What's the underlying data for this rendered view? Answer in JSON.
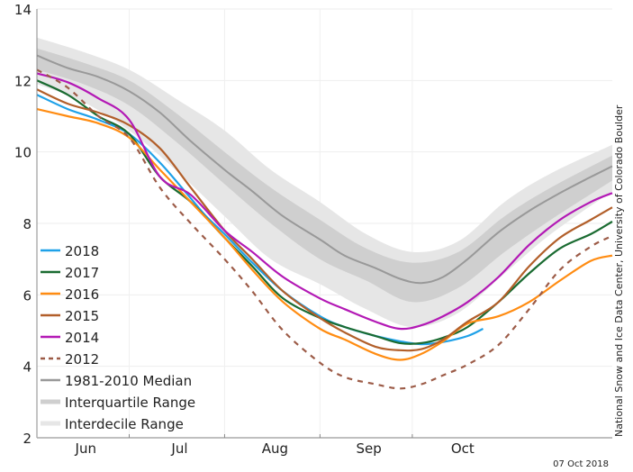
{
  "chart_data": {
    "type": "line",
    "title": "",
    "xlabel": "",
    "ylabel": "",
    "x_unit": "days since Jun 1",
    "xlim": [
      0,
      187
    ],
    "ylim": [
      2,
      14
    ],
    "yticks": [
      2,
      4,
      6,
      8,
      10,
      12,
      14
    ],
    "xticks_boundaries": [
      30,
      61,
      92,
      122
    ],
    "month_labels": [
      {
        "label": "Jun",
        "center": 15
      },
      {
        "label": "Jul",
        "center": 45.5
      },
      {
        "label": "Aug",
        "center": 76.5
      },
      {
        "label": "Sep",
        "center": 107
      },
      {
        "label": "Oct",
        "center": 137.5
      }
    ],
    "grid": true,
    "legend_position": "bottom-left",
    "credit": "National Snow and Ice Data Center, University of Colorado Boulder",
    "date_stamp": "07 Oct 2018",
    "bands": [
      {
        "name": "Interdecile Range",
        "color": "#e6e6e6",
        "x": [
          0,
          15,
          30,
          45,
          61,
          76,
          92,
          107,
          122,
          137,
          152,
          167,
          187
        ],
        "lower": [
          11.9,
          11.4,
          10.6,
          9.5,
          8.2,
          7.0,
          6.3,
          5.6,
          5.1,
          5.5,
          6.6,
          7.7,
          8.9
        ],
        "upper": [
          13.2,
          12.8,
          12.3,
          11.5,
          10.6,
          9.5,
          8.6,
          7.7,
          7.2,
          7.5,
          8.6,
          9.4,
          10.2
        ]
      },
      {
        "name": "Interquartile Range",
        "color": "#cfcfcf",
        "x": [
          0,
          15,
          30,
          45,
          61,
          76,
          92,
          107,
          122,
          137,
          152,
          167,
          187
        ],
        "lower": [
          12.3,
          11.9,
          11.3,
          10.3,
          9.1,
          8.0,
          7.0,
          6.4,
          5.8,
          6.2,
          7.2,
          8.1,
          9.2
        ],
        "upper": [
          12.9,
          12.5,
          12.0,
          11.1,
          10.0,
          9.0,
          8.1,
          7.3,
          6.9,
          7.2,
          8.2,
          9.0,
          9.9
        ]
      }
    ],
    "series": [
      {
        "name": "1981-2010 Median",
        "color": "#999999",
        "dash": false,
        "x": [
          0,
          10,
          20,
          30,
          40,
          50,
          61,
          70,
          80,
          92,
          100,
          110,
          118,
          125,
          132,
          140,
          150,
          160,
          170,
          180,
          187
        ],
        "values": [
          12.7,
          12.35,
          12.1,
          11.7,
          11.1,
          10.3,
          9.5,
          8.9,
          8.2,
          7.55,
          7.1,
          6.75,
          6.45,
          6.33,
          6.5,
          7.0,
          7.75,
          8.35,
          8.85,
          9.3,
          9.6
        ]
      },
      {
        "name": "2018",
        "color": "#1fa1e8",
        "dash": false,
        "x": [
          0,
          10,
          20,
          30,
          40,
          50,
          55,
          61,
          70,
          80,
          92,
          100,
          110,
          118,
          125,
          132,
          140,
          145
        ],
        "values": [
          11.6,
          11.2,
          10.9,
          10.5,
          9.7,
          8.7,
          8.2,
          7.7,
          6.9,
          6.1,
          5.4,
          5.1,
          4.85,
          4.7,
          4.62,
          4.68,
          4.85,
          5.05
        ]
      },
      {
        "name": "2017",
        "color": "#1a6b31",
        "dash": false,
        "x": [
          0,
          10,
          20,
          30,
          40,
          50,
          61,
          70,
          80,
          92,
          100,
          110,
          118,
          125,
          132,
          140,
          150,
          160,
          170,
          180,
          187
        ],
        "values": [
          12.0,
          11.6,
          11.0,
          10.5,
          9.3,
          8.6,
          7.6,
          6.8,
          5.9,
          5.35,
          5.1,
          4.85,
          4.65,
          4.65,
          4.8,
          5.1,
          5.8,
          6.6,
          7.3,
          7.7,
          8.05
        ]
      },
      {
        "name": "2016",
        "color": "#ff8c12",
        "dash": false,
        "x": [
          0,
          10,
          20,
          30,
          40,
          50,
          61,
          70,
          80,
          92,
          100,
          110,
          118,
          125,
          132,
          140,
          150,
          160,
          170,
          180,
          187
        ],
        "values": [
          11.2,
          11.0,
          10.8,
          10.4,
          9.5,
          8.6,
          7.6,
          6.7,
          5.8,
          5.05,
          4.75,
          4.35,
          4.18,
          4.35,
          4.7,
          5.2,
          5.4,
          5.8,
          6.4,
          6.95,
          7.1
        ]
      },
      {
        "name": "2015",
        "color": "#b25f2a",
        "dash": false,
        "x": [
          0,
          10,
          20,
          30,
          40,
          50,
          61,
          70,
          80,
          92,
          100,
          110,
          118,
          125,
          132,
          140,
          150,
          160,
          170,
          180,
          187
        ],
        "values": [
          11.75,
          11.35,
          11.1,
          10.75,
          10.1,
          9.0,
          7.8,
          7.0,
          6.1,
          5.35,
          4.95,
          4.55,
          4.45,
          4.48,
          4.75,
          5.25,
          5.8,
          6.8,
          7.6,
          8.1,
          8.45
        ]
      },
      {
        "name": "2014",
        "color": "#b319b5",
        "dash": false,
        "x": [
          0,
          10,
          20,
          30,
          40,
          50,
          61,
          70,
          80,
          92,
          100,
          110,
          118,
          125,
          132,
          140,
          150,
          160,
          170,
          180,
          187
        ],
        "values": [
          12.2,
          11.95,
          11.5,
          10.9,
          9.3,
          8.8,
          7.8,
          7.2,
          6.5,
          5.9,
          5.6,
          5.25,
          5.05,
          5.15,
          5.4,
          5.8,
          6.5,
          7.4,
          8.1,
          8.6,
          8.85
        ]
      },
      {
        "name": "2012",
        "color": "#9c5b47",
        "dash": true,
        "x": [
          0,
          10,
          20,
          30,
          40,
          50,
          61,
          70,
          80,
          92,
          100,
          110,
          118,
          125,
          132,
          140,
          150,
          160,
          170,
          180,
          187
        ],
        "values": [
          12.3,
          11.8,
          11.0,
          10.4,
          9.0,
          8.0,
          7.0,
          6.1,
          5.0,
          4.1,
          3.7,
          3.5,
          3.38,
          3.5,
          3.75,
          4.05,
          4.6,
          5.6,
          6.7,
          7.35,
          7.65
        ]
      }
    ],
    "legend": [
      {
        "label": "2018",
        "color": "#1fa1e8",
        "style": "solid"
      },
      {
        "label": "2017",
        "color": "#1a6b31",
        "style": "solid"
      },
      {
        "label": "2016",
        "color": "#ff8c12",
        "style": "solid"
      },
      {
        "label": "2015",
        "color": "#b25f2a",
        "style": "solid"
      },
      {
        "label": "2014",
        "color": "#b319b5",
        "style": "solid"
      },
      {
        "label": "2012",
        "color": "#9c5b47",
        "style": "dashed"
      },
      {
        "label": "1981-2010 Median",
        "color": "#999999",
        "style": "solid"
      },
      {
        "label": "Interquartile Range",
        "color": "#cfcfcf",
        "style": "band"
      },
      {
        "label": "Interdecile Range",
        "color": "#e6e6e6",
        "style": "band"
      }
    ]
  }
}
